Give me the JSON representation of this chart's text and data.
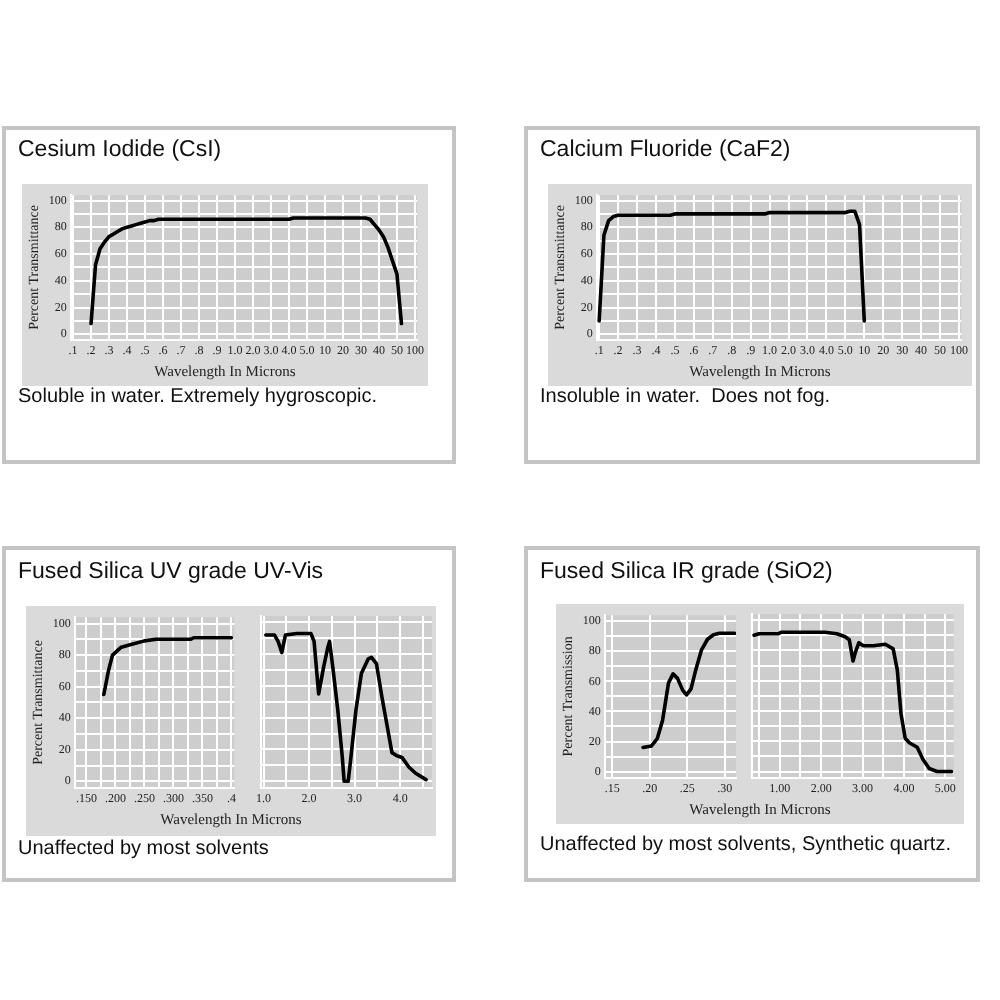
{
  "chart_data": [
    {
      "type": "line",
      "title": "Cesium Iodide (CsI)",
      "xlabel": "Wavelength In Microns",
      "ylabel": "Percent Transmittance",
      "annotations": [
        "Soluble in water. Extremely hygroscopic."
      ],
      "color": "#000000",
      "marker": "none",
      "grid": true,
      "categories": [
        ".1",
        null,
        null,
        null,
        ".2",
        null,
        null,
        null,
        ".3",
        null,
        null,
        null,
        ".4",
        null,
        null,
        null,
        ".5",
        null,
        null,
        null,
        ".6",
        null,
        null,
        null,
        ".7",
        null,
        null,
        null,
        ".8",
        null,
        null,
        null,
        ".9",
        null,
        null,
        null,
        "1.0",
        null,
        null,
        null,
        "2.0",
        null,
        null,
        null,
        "3.0",
        null,
        null,
        null,
        "4.0",
        null,
        null,
        null,
        "5.0",
        null,
        null,
        null,
        "10",
        null,
        null,
        null,
        "20",
        null,
        null,
        null,
        "30",
        null,
        null,
        null,
        "40",
        null,
        null,
        null,
        "50",
        null,
        null,
        null,
        "100"
      ],
      "values": [
        null,
        null,
        null,
        null,
        8,
        52,
        64,
        69,
        73,
        75,
        77,
        79,
        80,
        81,
        82,
        83,
        84,
        85,
        85,
        86,
        86,
        86,
        86,
        86,
        86,
        86,
        86,
        86,
        86,
        86,
        86,
        86,
        86,
        86,
        86,
        86,
        86,
        86,
        86,
        86,
        86,
        86,
        86,
        86,
        86,
        86,
        86,
        86,
        86,
        87,
        87,
        87,
        87,
        87,
        87,
        87,
        87,
        87,
        87,
        87,
        87,
        87,
        87,
        87,
        87,
        87,
        86,
        82,
        78,
        73,
        65,
        55,
        45,
        8,
        null,
        null,
        null
      ],
      "ylim": [
        -4,
        104
      ],
      "yticks": [
        0,
        {
          "value": 10,
          "label": null
        },
        20,
        {
          "value": 30,
          "label": null
        },
        40,
        {
          "value": 50,
          "label": null
        },
        60,
        {
          "value": 70,
          "label": null
        },
        80,
        {
          "value": 90,
          "label": null
        },
        100
      ]
    },
    {
      "type": "line",
      "title": "Calcium Fluoride (CaF2)",
      "xlabel": "Wavelength In Microns",
      "ylabel": "Percent Transmittance",
      "annotations": [
        "Insoluble in water.  Does not fog."
      ],
      "color": "#000000",
      "marker": "none",
      "grid": true,
      "categories": [
        ".1",
        null,
        null,
        null,
        ".2",
        null,
        null,
        null,
        ".3",
        null,
        null,
        null,
        ".4",
        null,
        null,
        null,
        ".5",
        null,
        null,
        null,
        ".6",
        null,
        null,
        null,
        ".7",
        null,
        null,
        null,
        ".8",
        null,
        null,
        null,
        ".9",
        null,
        null,
        null,
        "1.0",
        null,
        null,
        null,
        "2.0",
        null,
        null,
        null,
        "3.0",
        null,
        null,
        null,
        "4.0",
        null,
        null,
        null,
        "5.0",
        null,
        null,
        null,
        "10",
        null,
        null,
        null,
        "20",
        null,
        null,
        null,
        "30",
        null,
        null,
        null,
        "40",
        null,
        null,
        null,
        "50",
        null,
        null,
        null,
        "100"
      ],
      "values": [
        10,
        74,
        85,
        88,
        89,
        89,
        89,
        89,
        89,
        89,
        89,
        89,
        89,
        89,
        89,
        89,
        90,
        90,
        90,
        90,
        90,
        90,
        90,
        90,
        90,
        90,
        90,
        90,
        90,
        90,
        90,
        90,
        90,
        90,
        90,
        90,
        91,
        91,
        91,
        91,
        91,
        91,
        91,
        91,
        91,
        91,
        91,
        91,
        91,
        91,
        91,
        91,
        91,
        92,
        92,
        82,
        10,
        null,
        null,
        null,
        null,
        null,
        null,
        null,
        null,
        null,
        null,
        null,
        null,
        null,
        null,
        null,
        null,
        null,
        null,
        null,
        null
      ],
      "ylim": [
        -4,
        104
      ],
      "yticks": [
        0,
        {
          "value": 10,
          "label": null
        },
        20,
        {
          "value": 30,
          "label": null
        },
        40,
        {
          "value": 50,
          "label": null
        },
        60,
        {
          "value": 70,
          "label": null
        },
        80,
        {
          "value": 90,
          "label": null
        },
        100
      ]
    },
    {
      "type": "line",
      "title": "Fused Silica UV grade UV-Vis",
      "xlabel": "Wavelength In Microns",
      "ylabel": "Percent Transmittance",
      "annotations": [
        "Unaffected by most solvents"
      ],
      "color": "#000000",
      "marker": "none",
      "grid": true,
      "x": [
        0.18,
        0.188,
        0.195,
        0.21,
        0.23,
        0.25,
        0.27,
        0.3,
        0.33,
        0.335,
        0.4
      ],
      "values": [
        55,
        70,
        80,
        85,
        87,
        89,
        90,
        90,
        90,
        91,
        91
      ],
      "xlim": [
        0.13,
        0.405
      ],
      "xticks": [
        {
          "value": 0.15,
          "label": ".150"
        },
        {
          "value": 0.175,
          "label": null
        },
        {
          "value": 0.2,
          "label": ".200"
        },
        {
          "value": 0.225,
          "label": null
        },
        {
          "value": 0.25,
          "label": ".250"
        },
        {
          "value": 0.275,
          "label": null
        },
        {
          "value": 0.3,
          "label": ".300"
        },
        {
          "value": 0.325,
          "label": null
        },
        {
          "value": 0.35,
          "label": ".350"
        },
        {
          "value": 0.375,
          "label": null
        },
        {
          "value": 0.4,
          "label": ".4"
        }
      ],
      "ylim": [
        -4,
        104
      ],
      "yticks": [
        0,
        {
          "value": 10,
          "label": null
        },
        20,
        {
          "value": 30,
          "label": null
        },
        40,
        {
          "value": 50,
          "label": null
        },
        60,
        {
          "value": 70,
          "label": null
        },
        80,
        {
          "value": 90,
          "label": null
        },
        100
      ]
    },
    {
      "type": "line",
      "color": "#000000",
      "marker": "none",
      "grid": true,
      "tick_labels": "x",
      "x": [
        1.05,
        1.24,
        1.32,
        1.4,
        1.48,
        1.73,
        2.04,
        2.11,
        2.21,
        2.32,
        2.41,
        2.45,
        2.52,
        2.63,
        2.73,
        2.77,
        2.86,
        2.93,
        3.03,
        3.15,
        3.3,
        3.37,
        3.48,
        3.6,
        3.72,
        3.82,
        3.93,
        4.04,
        4.19,
        4.34,
        4.57
      ],
      "values": [
        92,
        92,
        88,
        81,
        92,
        93,
        93,
        88,
        55,
        72,
        84,
        88,
        72,
        45,
        15,
        0,
        0,
        18,
        45,
        68,
        77,
        78,
        74,
        53,
        34,
        18,
        16,
        15,
        9,
        5,
        1
      ],
      "xlim": [
        0.95,
        4.7
      ],
      "xticks": [
        {
          "value": 1,
          "label": "1.0"
        },
        {
          "value": 1.5,
          "label": null
        },
        {
          "value": 2,
          "label": "2.0"
        },
        {
          "value": 2.5,
          "label": null
        },
        {
          "value": 3,
          "label": "3.0"
        },
        {
          "value": 3.5,
          "label": null
        },
        {
          "value": 4,
          "label": "4.0"
        },
        {
          "value": 4.5,
          "label": null
        }
      ],
      "ylim": [
        -4,
        104
      ],
      "yticks": [
        0,
        {
          "value": 10,
          "label": null
        },
        20,
        {
          "value": 30,
          "label": null
        },
        40,
        {
          "value": 50,
          "label": null
        },
        60,
        {
          "value": 70,
          "label": null
        },
        80,
        {
          "value": 90,
          "label": null
        },
        100
      ]
    },
    {
      "type": "line",
      "title": "Fused Silica IR grade (SiO2)",
      "xlabel": "Wavelength In Microns",
      "ylabel": "Percent Transmission",
      "annotations": [
        "Unaffected by most solvents, Synthetic quartz."
      ],
      "color": "#000000",
      "marker": "none",
      "grid": true,
      "x": [
        0.191,
        0.202,
        0.21,
        0.217,
        0.225,
        0.231,
        0.237,
        0.244,
        0.249,
        0.255,
        0.261,
        0.269,
        0.277,
        0.285,
        0.293,
        0.313
      ],
      "values": [
        16,
        17,
        22,
        34,
        59,
        65,
        62,
        54,
        51,
        55,
        67,
        81,
        88,
        91,
        92,
        92
      ],
      "xlim": [
        0.14,
        0.315
      ],
      "xticks": [
        {
          "value": 0.15,
          "label": ".15"
        },
        {
          "value": 0.2,
          "label": ".20"
        },
        {
          "value": 0.25,
          "label": ".25"
        },
        {
          "value": 0.3,
          "label": ".30"
        }
      ],
      "ylim": [
        -4,
        104
      ],
      "yticks": [
        0,
        {
          "value": 10,
          "label": null
        },
        20,
        {
          "value": 30,
          "label": null
        },
        40,
        {
          "value": 50,
          "label": null
        },
        60,
        {
          "value": 70,
          "label": null
        },
        80,
        {
          "value": 90,
          "label": null
        },
        100
      ]
    },
    {
      "type": "line",
      "color": "#000000",
      "marker": "none",
      "grid": true,
      "tick_labels": "x",
      "x": [
        0.38,
        0.5,
        0.7,
        0.97,
        1.03,
        1.71,
        2.09,
        2.38,
        2.58,
        2.68,
        2.77,
        2.83,
        2.91,
        3.02,
        3.26,
        3.55,
        3.74,
        3.84,
        3.93,
        4.03,
        4.13,
        4.32,
        4.46,
        4.61,
        4.8,
        5.15
      ],
      "values": [
        90,
        91,
        91,
        91,
        92,
        92,
        92,
        91,
        89,
        87,
        73,
        79,
        85,
        83,
        83,
        84,
        81,
        67,
        38,
        22,
        19,
        16,
        8,
        2,
        0,
        0
      ],
      "xlim": [
        0.33,
        5.2
      ],
      "xticks": [
        {
          "value": 0.5,
          "label": null
        },
        {
          "value": 1,
          "label": "1.00"
        },
        {
          "value": 1.5,
          "label": null
        },
        {
          "value": 2,
          "label": "2.00"
        },
        {
          "value": 2.5,
          "label": null
        },
        {
          "value": 3,
          "label": "3.00"
        },
        {
          "value": 3.5,
          "label": null
        },
        {
          "value": 4,
          "label": "4.00"
        },
        {
          "value": 4.5,
          "label": null
        },
        {
          "value": 5,
          "label": "5.00"
        }
      ],
      "ylim": [
        -4,
        104
      ],
      "yticks": [
        0,
        {
          "value": 10,
          "label": null
        },
        20,
        {
          "value": 30,
          "label": null
        },
        40,
        {
          "value": 50,
          "label": null
        },
        60,
        {
          "value": 70,
          "label": null
        },
        80,
        {
          "value": 90,
          "label": null
        },
        100
      ]
    }
  ]
}
